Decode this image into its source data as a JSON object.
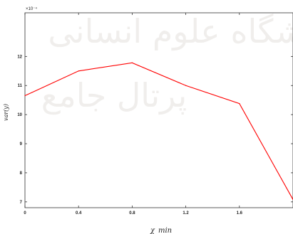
{
  "chart_data": {
    "type": "line",
    "title": "",
    "xlabel": "χ_min",
    "ylabel": "var(y)",
    "y_exponent": "×10⁻⁴",
    "xlim": [
      0,
      2
    ],
    "ylim": [
      6.8,
      13.5
    ],
    "xticks": [
      "0",
      "0.4",
      "0.8",
      "1.2",
      "1.6"
    ],
    "yticks": [
      "7",
      "8",
      "9",
      "10",
      "11",
      "12"
    ],
    "grid": false,
    "series": [
      {
        "color": "#ff0000",
        "x": [
          0,
          0.4,
          0.8,
          1.2,
          1.6,
          2.0
        ],
        "y": [
          10.65,
          11.5,
          11.78,
          11.0,
          10.38,
          7.08
        ]
      }
    ]
  },
  "watermark": {
    "line1": "پژوهشگاه علوم انسانی",
    "line2": "پرتال جامع"
  }
}
